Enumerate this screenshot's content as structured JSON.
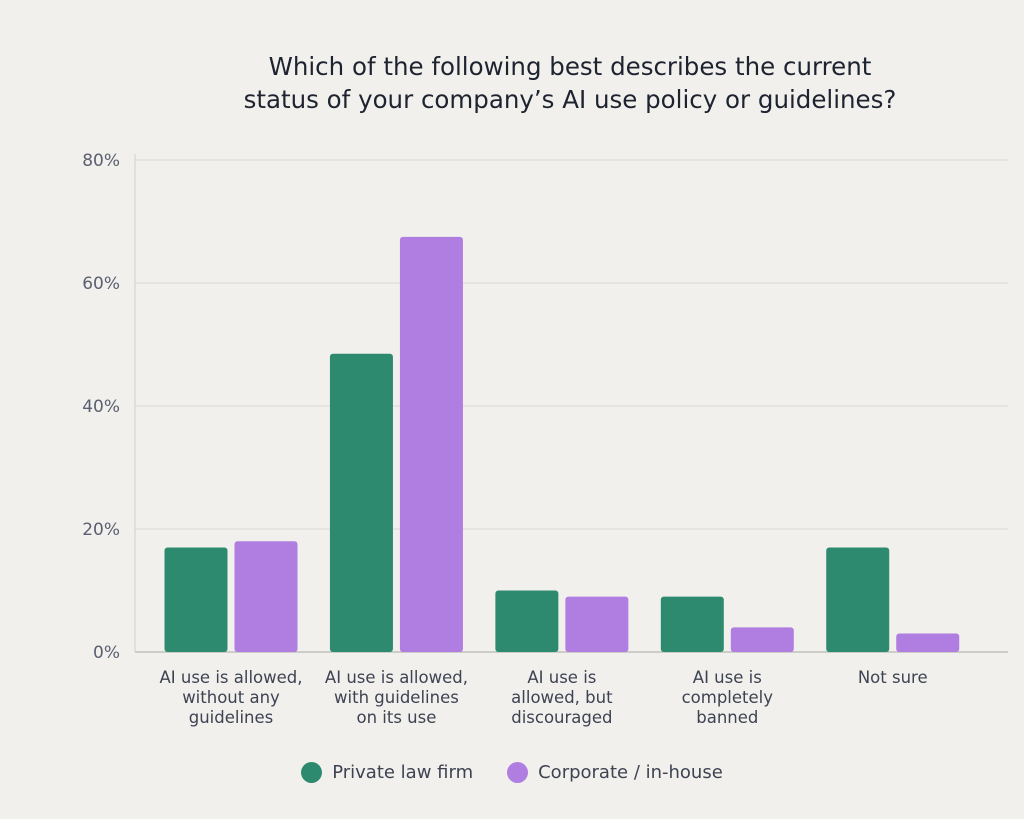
{
  "chart_data": {
    "type": "bar",
    "title_lines": [
      "Which of the following best describes the current",
      "status of your company’s AI use policy or guidelines?"
    ],
    "categories": [
      [
        "AI use is allowed,",
        "without any",
        "guidelines"
      ],
      [
        "AI use is allowed,",
        "with guidelines",
        "on its use"
      ],
      [
        "AI use is",
        "allowed, but",
        "discouraged"
      ],
      [
        "AI use is",
        "completely",
        "banned"
      ],
      [
        "Not sure"
      ]
    ],
    "series": [
      {
        "name": "Private law firm",
        "color": "#2d8a6e",
        "values": [
          17,
          48.5,
          10,
          9,
          17
        ]
      },
      {
        "name": "Corporate / in-house",
        "color": "#b07de0",
        "values": [
          18,
          67.5,
          9,
          4,
          3
        ]
      }
    ],
    "yticks": [
      "0%",
      "20%",
      "40%",
      "60%",
      "80%"
    ],
    "ylim": [
      0,
      80
    ],
    "grid": true,
    "legend_position": "bottom"
  }
}
